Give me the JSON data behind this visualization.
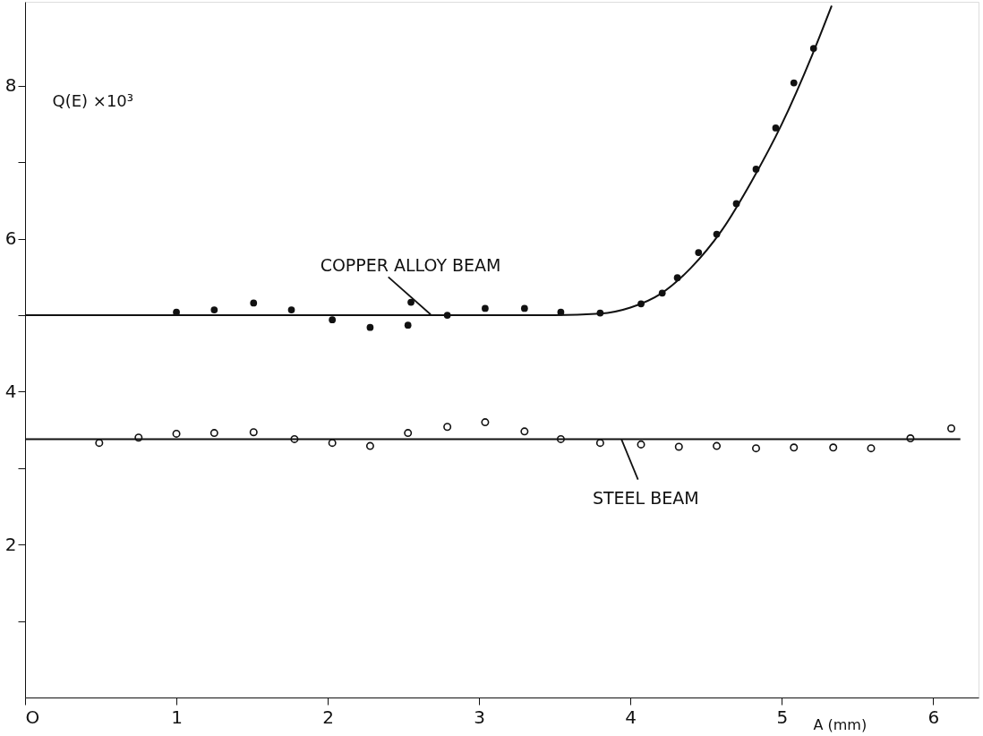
{
  "chart_data": {
    "type": "scatter",
    "xlabel": "A (mm)",
    "ylabel": "Q(E) ×10³",
    "xlim": [
      0,
      6.3
    ],
    "ylim": [
      0,
      9.1
    ],
    "xticks": [
      {
        "value": 0,
        "label": "O"
      },
      1,
      2,
      3,
      4,
      5,
      6
    ],
    "yticks": [
      {
        "value": 1,
        "label": null
      },
      2,
      {
        "value": 3,
        "label": null
      },
      4,
      {
        "value": 5,
        "label": null
      },
      6,
      {
        "value": 7,
        "label": null
      },
      8
    ],
    "grid": false,
    "series": [
      {
        "name": "COPPER ALLOY BEAM",
        "marker": "circle",
        "color": "#111111",
        "x": [
          1.0,
          1.25,
          1.51,
          1.76,
          2.03,
          2.28,
          2.53,
          2.55,
          2.79,
          3.04,
          3.3,
          3.54,
          3.8,
          4.07,
          4.21,
          4.31,
          4.45,
          4.57,
          4.7,
          4.83,
          4.96,
          5.08,
          5.21
        ],
        "values": [
          5.04,
          5.07,
          5.16,
          5.07,
          4.94,
          4.84,
          4.87,
          5.17,
          5.0,
          5.09,
          5.09,
          5.04,
          5.03,
          5.15,
          5.29,
          5.49,
          5.82,
          6.06,
          6.46,
          6.91,
          7.45,
          8.04,
          8.49
        ]
      },
      {
        "type": "line",
        "marker": "none",
        "line_style": "solid",
        "color": "#111111",
        "x": [
          0,
          3.5,
          3.8,
          4.0,
          4.2,
          4.4,
          4.6,
          4.8,
          5.0,
          5.2,
          5.33
        ],
        "values": [
          5.0,
          5.0,
          5.02,
          5.1,
          5.28,
          5.62,
          6.1,
          6.75,
          7.5,
          8.4,
          9.05
        ]
      },
      {
        "name": "STEEL BEAM",
        "marker": "circle",
        "color": "#111111",
        "x": [
          0.49,
          0.75,
          1.0,
          1.25,
          1.51,
          1.78,
          2.03,
          2.28,
          2.53,
          2.79,
          3.04,
          3.3,
          3.54,
          3.8,
          4.07,
          4.32,
          4.57,
          4.83,
          5.08,
          5.34,
          5.59,
          5.85,
          6.12
        ],
        "values": [
          3.33,
          3.4,
          3.45,
          3.46,
          3.47,
          3.38,
          3.33,
          3.29,
          3.46,
          3.54,
          3.6,
          3.48,
          3.38,
          3.33,
          3.31,
          3.28,
          3.29,
          3.26,
          3.27,
          3.27,
          3.26,
          3.39,
          3.52
        ]
      },
      {
        "type": "line",
        "marker": "none",
        "line_style": "solid",
        "color": "#111111",
        "x": [
          0,
          6.18
        ],
        "values": [
          3.38,
          3.38
        ]
      }
    ]
  }
}
